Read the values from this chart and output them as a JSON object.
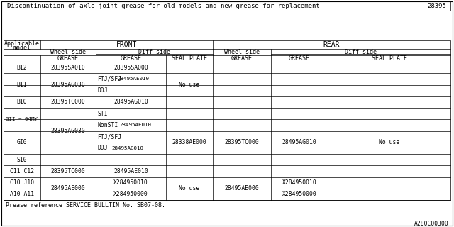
{
  "title": "Discontinuation of axle joint grease for old models and new grease for replacement",
  "title_number": "28395",
  "footer": "Prease reference SERVICE BULLTIN No. SB07-08.",
  "watermark": "A280C00300",
  "bg_color": "#ffffff"
}
